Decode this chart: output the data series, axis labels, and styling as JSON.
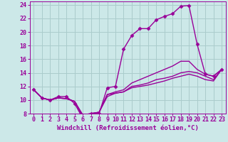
{
  "background_color": "#cce8e8",
  "grid_color": "#aacccc",
  "line_color": "#990099",
  "marker": "D",
  "marker_size": 2.5,
  "line_width": 1.0,
  "xlabel": "Windchill (Refroidissement éolien,°C)",
  "xlabel_fontsize": 6.5,
  "tick_fontsize": 6,
  "xlim": [
    -0.5,
    23.5
  ],
  "ylim": [
    8,
    24.5
  ],
  "yticks": [
    8,
    10,
    12,
    14,
    16,
    18,
    20,
    22,
    24
  ],
  "xticks": [
    0,
    1,
    2,
    3,
    4,
    5,
    6,
    7,
    8,
    9,
    10,
    11,
    12,
    13,
    14,
    15,
    16,
    17,
    18,
    19,
    20,
    21,
    22,
    23
  ],
  "curve1_x": [
    0,
    1,
    2,
    3,
    4,
    5,
    6,
    7,
    8,
    9,
    10,
    11,
    12,
    13,
    14,
    15,
    16,
    17,
    18,
    19,
    20,
    21,
    22,
    23
  ],
  "curve1_y": [
    11.5,
    10.3,
    10.0,
    10.5,
    10.5,
    9.5,
    7.3,
    8.0,
    8.0,
    11.8,
    12.0,
    17.5,
    19.5,
    20.5,
    20.5,
    21.8,
    22.3,
    22.7,
    23.8,
    23.9,
    18.2,
    13.8,
    13.5,
    14.5
  ],
  "curve2_x": [
    0,
    1,
    2,
    3,
    4,
    5,
    6,
    7,
    8,
    9,
    10,
    11,
    12,
    13,
    14,
    15,
    16,
    17,
    18,
    19,
    20,
    21,
    22,
    23
  ],
  "curve2_y": [
    11.5,
    10.3,
    10.0,
    10.3,
    10.2,
    9.8,
    7.8,
    8.0,
    8.2,
    10.8,
    11.2,
    11.5,
    12.5,
    13.0,
    13.5,
    14.0,
    14.5,
    15.0,
    15.7,
    15.7,
    14.5,
    13.8,
    13.5,
    14.5
  ],
  "curve3_x": [
    0,
    1,
    2,
    3,
    4,
    5,
    6,
    7,
    8,
    9,
    10,
    11,
    12,
    13,
    14,
    15,
    16,
    17,
    18,
    19,
    20,
    21,
    22,
    23
  ],
  "curve3_y": [
    11.5,
    10.3,
    10.0,
    10.3,
    10.2,
    9.8,
    7.8,
    8.0,
    8.2,
    10.8,
    11.0,
    11.2,
    12.0,
    12.2,
    12.5,
    13.0,
    13.2,
    13.5,
    14.0,
    14.2,
    14.0,
    13.5,
    13.0,
    14.5
  ],
  "curve4_x": [
    0,
    1,
    2,
    3,
    4,
    5,
    6,
    7,
    8,
    9,
    10,
    11,
    12,
    13,
    14,
    15,
    16,
    17,
    18,
    19,
    20,
    21,
    22,
    23
  ],
  "curve4_y": [
    11.5,
    10.3,
    10.0,
    10.3,
    10.2,
    9.8,
    7.5,
    8.0,
    8.2,
    10.5,
    11.0,
    11.2,
    11.8,
    12.0,
    12.2,
    12.5,
    12.8,
    13.2,
    13.5,
    13.8,
    13.5,
    13.0,
    12.8,
    14.5
  ]
}
